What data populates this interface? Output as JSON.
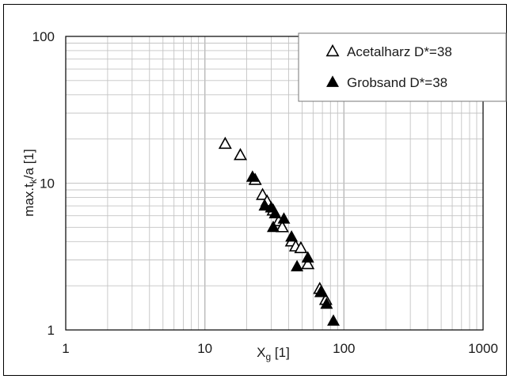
{
  "chart_data": {
    "type": "scatter",
    "xscale": "log",
    "yscale": "log",
    "xlim": [
      1,
      1000
    ],
    "ylim": [
      1,
      100
    ],
    "grid": true,
    "legend_position": "top-right",
    "xlabel": {
      "main": "X",
      "sub": "g",
      "rest": " [1]"
    },
    "ylabel": {
      "main": "max.t",
      "sub": "k",
      "rest": "/a [1]"
    },
    "xticks": [
      {
        "value": 1,
        "label": "1"
      },
      {
        "value": 10,
        "label": "10"
      },
      {
        "value": 100,
        "label": "100"
      },
      {
        "value": 1000,
        "label": "1000"
      }
    ],
    "yticks": [
      {
        "value": 1,
        "label": "1"
      },
      {
        "value": 10,
        "label": "10"
      },
      {
        "value": 100,
        "label": "100"
      }
    ],
    "series": [
      {
        "name": "Acetalharz D*=38",
        "marker": "triangle-open",
        "color": "#000000",
        "points": [
          [
            14,
            18.5
          ],
          [
            18,
            15.5
          ],
          [
            23,
            10.5
          ],
          [
            26,
            8.3
          ],
          [
            28,
            7.5
          ],
          [
            31,
            6.5
          ],
          [
            34,
            5.5
          ],
          [
            36,
            5.0
          ],
          [
            42,
            4.0
          ],
          [
            45,
            3.7
          ],
          [
            49,
            3.6
          ],
          [
            55,
            2.8
          ],
          [
            67,
            1.9
          ],
          [
            74,
            1.6
          ]
        ]
      },
      {
        "name": "Grobsand D*=38",
        "marker": "triangle-filled",
        "color": "#000000",
        "points": [
          [
            22,
            11.0
          ],
          [
            27,
            7.0
          ],
          [
            30,
            6.8
          ],
          [
            32,
            6.2
          ],
          [
            31,
            5.0
          ],
          [
            37,
            5.7
          ],
          [
            42,
            4.3
          ],
          [
            46,
            2.7
          ],
          [
            55,
            3.1
          ],
          [
            68,
            1.8
          ],
          [
            75,
            1.5
          ],
          [
            84,
            1.15
          ]
        ]
      }
    ]
  }
}
